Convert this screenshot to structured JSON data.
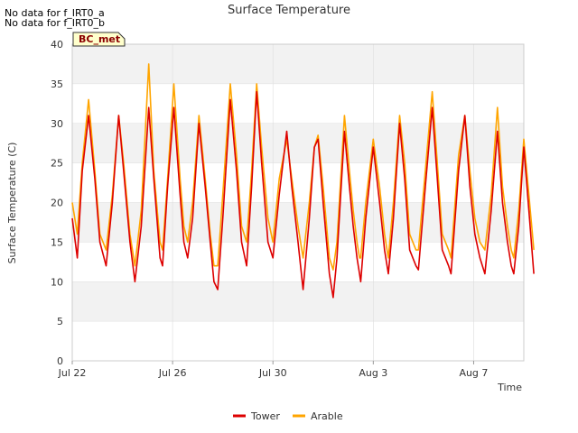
{
  "notes": [
    "No data for f_IRT0_a",
    "No data for f_IRT0_b"
  ],
  "badge": "BC_met",
  "colors": {
    "tower": "#dd0000",
    "arable": "#ffa500",
    "band": "#f2f2f2",
    "grid": "#dddddd"
  },
  "chart_data": {
    "type": "line",
    "title": "Surface Temperature",
    "xlabel": "Time",
    "ylabel": "Surface Temperature (C)",
    "ylim": [
      0,
      40
    ],
    "yticks": [
      0,
      5,
      10,
      15,
      20,
      25,
      30,
      35,
      40
    ],
    "xlim_days": [
      0,
      18
    ],
    "xticks": [
      {
        "day": 0,
        "label": "Jul 22"
      },
      {
        "day": 4,
        "label": "Jul 26"
      },
      {
        "day": 8,
        "label": "Jul 30"
      },
      {
        "day": 12,
        "label": "Aug 3"
      },
      {
        "day": 16,
        "label": "Aug 7"
      }
    ],
    "grid": true,
    "legend_position": "bottom-center",
    "series": [
      {
        "name": "Tower",
        "color": "#dd0000",
        "points": [
          [
            0,
            18
          ],
          [
            0.2,
            13
          ],
          [
            0.4,
            24
          ],
          [
            0.65,
            31
          ],
          [
            0.9,
            23
          ],
          [
            1.1,
            15
          ],
          [
            1.35,
            12
          ],
          [
            1.6,
            20
          ],
          [
            1.85,
            31
          ],
          [
            2.05,
            24
          ],
          [
            2.3,
            15
          ],
          [
            2.5,
            10
          ],
          [
            2.75,
            17
          ],
          [
            3.05,
            32
          ],
          [
            3.25,
            23
          ],
          [
            3.5,
            13
          ],
          [
            3.6,
            12
          ],
          [
            3.8,
            22
          ],
          [
            4.05,
            32
          ],
          [
            4.3,
            21
          ],
          [
            4.45,
            15
          ],
          [
            4.6,
            13
          ],
          [
            4.8,
            18
          ],
          [
            5.05,
            30
          ],
          [
            5.3,
            22
          ],
          [
            5.5,
            15
          ],
          [
            5.65,
            10
          ],
          [
            5.8,
            9
          ],
          [
            6.0,
            18
          ],
          [
            6.3,
            33
          ],
          [
            6.55,
            24
          ],
          [
            6.75,
            15
          ],
          [
            6.95,
            12
          ],
          [
            7.15,
            22
          ],
          [
            7.35,
            34
          ],
          [
            7.55,
            25
          ],
          [
            7.8,
            15
          ],
          [
            8.0,
            13
          ],
          [
            8.25,
            21
          ],
          [
            8.55,
            29
          ],
          [
            8.75,
            22
          ],
          [
            9.0,
            15
          ],
          [
            9.2,
            9
          ],
          [
            9.45,
            18
          ],
          [
            9.65,
            27
          ],
          [
            9.8,
            28
          ],
          [
            10.0,
            20
          ],
          [
            10.25,
            11
          ],
          [
            10.4,
            8
          ],
          [
            10.55,
            13
          ],
          [
            10.85,
            29
          ],
          [
            11.05,
            22
          ],
          [
            11.2,
            17
          ],
          [
            11.35,
            13
          ],
          [
            11.45,
            11
          ],
          [
            11.5,
            10
          ],
          [
            11.7,
            18
          ],
          [
            12.0,
            27
          ],
          [
            12.25,
            20
          ],
          [
            12.45,
            14
          ],
          [
            12.6,
            11
          ],
          [
            12.8,
            18
          ],
          [
            13.05,
            30
          ],
          [
            13.25,
            23
          ],
          [
            13.45,
            14
          ],
          [
            13.7,
            12
          ],
          [
            13.8,
            11.5
          ],
          [
            14.1,
            23
          ],
          [
            14.35,
            32
          ],
          [
            14.55,
            23
          ],
          [
            14.75,
            14
          ],
          [
            15.0,
            12
          ],
          [
            15.1,
            11
          ],
          [
            15.4,
            24
          ],
          [
            15.65,
            31
          ],
          [
            15.85,
            22
          ],
          [
            16.05,
            16
          ],
          [
            16.25,
            13
          ],
          [
            16.45,
            11
          ],
          [
            16.7,
            19
          ],
          [
            16.95,
            29
          ],
          [
            17.15,
            20
          ],
          [
            17.35,
            15
          ],
          [
            17.5,
            12
          ],
          [
            17.6,
            11
          ],
          [
            17.8,
            17
          ],
          [
            18.0,
            27
          ],
          [
            18.2,
            19
          ],
          [
            18.4,
            11
          ]
        ]
      },
      {
        "name": "Arable",
        "color": "#ffa500",
        "points": [
          [
            0,
            20
          ],
          [
            0.2,
            16
          ],
          [
            0.4,
            25
          ],
          [
            0.65,
            33
          ],
          [
            0.9,
            24
          ],
          [
            1.1,
            16
          ],
          [
            1.35,
            14
          ],
          [
            1.6,
            21
          ],
          [
            1.85,
            31
          ],
          [
            2.05,
            25
          ],
          [
            2.3,
            16
          ],
          [
            2.5,
            12
          ],
          [
            2.75,
            19
          ],
          [
            3.05,
            37.5
          ],
          [
            3.25,
            24
          ],
          [
            3.5,
            15
          ],
          [
            3.6,
            14
          ],
          [
            3.8,
            23
          ],
          [
            4.05,
            35
          ],
          [
            4.3,
            23
          ],
          [
            4.45,
            17
          ],
          [
            4.6,
            15
          ],
          [
            4.8,
            20
          ],
          [
            5.05,
            31
          ],
          [
            5.3,
            23
          ],
          [
            5.5,
            16
          ],
          [
            5.65,
            12
          ],
          [
            5.8,
            12
          ],
          [
            6.0,
            21
          ],
          [
            6.3,
            35
          ],
          [
            6.55,
            26
          ],
          [
            6.75,
            17
          ],
          [
            6.95,
            15
          ],
          [
            7.15,
            24
          ],
          [
            7.35,
            35
          ],
          [
            7.55,
            27
          ],
          [
            7.8,
            18
          ],
          [
            8.0,
            15
          ],
          [
            8.25,
            23
          ],
          [
            8.55,
            28
          ],
          [
            8.75,
            23
          ],
          [
            9.0,
            17
          ],
          [
            9.2,
            13
          ],
          [
            9.45,
            20
          ],
          [
            9.65,
            27
          ],
          [
            9.8,
            28.5
          ],
          [
            10.0,
            22
          ],
          [
            10.25,
            13
          ],
          [
            10.4,
            11.5
          ],
          [
            10.55,
            15
          ],
          [
            10.85,
            31
          ],
          [
            11.05,
            24
          ],
          [
            11.2,
            19
          ],
          [
            11.35,
            15
          ],
          [
            11.45,
            13
          ],
          [
            11.5,
            13
          ],
          [
            11.7,
            20
          ],
          [
            12.0,
            28
          ],
          [
            12.25,
            22
          ],
          [
            12.45,
            16
          ],
          [
            12.6,
            13
          ],
          [
            12.8,
            20
          ],
          [
            13.05,
            31
          ],
          [
            13.25,
            25
          ],
          [
            13.45,
            16
          ],
          [
            13.7,
            14
          ],
          [
            13.8,
            14
          ],
          [
            14.1,
            25
          ],
          [
            14.35,
            34
          ],
          [
            14.55,
            25
          ],
          [
            14.75,
            16
          ],
          [
            15.0,
            14
          ],
          [
            15.1,
            13
          ],
          [
            15.4,
            26
          ],
          [
            15.65,
            31
          ],
          [
            15.85,
            24
          ],
          [
            16.05,
            18
          ],
          [
            16.25,
            15
          ],
          [
            16.45,
            14
          ],
          [
            16.7,
            21
          ],
          [
            16.95,
            32
          ],
          [
            17.15,
            22
          ],
          [
            17.35,
            17
          ],
          [
            17.5,
            14
          ],
          [
            17.6,
            13
          ],
          [
            17.8,
            19
          ],
          [
            18.0,
            28
          ],
          [
            18.2,
            21
          ],
          [
            18.4,
            14
          ]
        ]
      }
    ]
  }
}
